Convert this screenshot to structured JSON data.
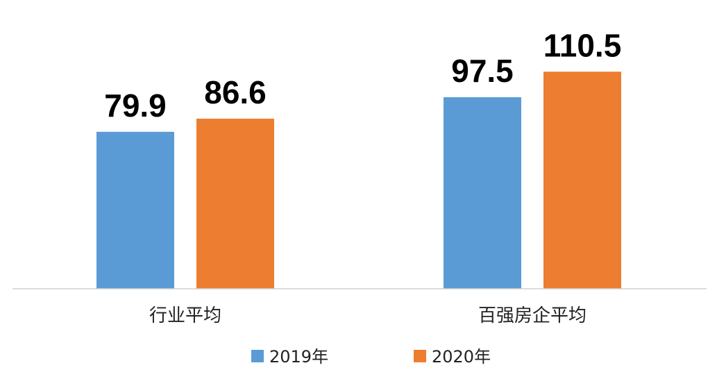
{
  "chart_data": {
    "type": "bar",
    "categories": [
      "行业平均",
      "百强房企平均"
    ],
    "series": [
      {
        "name": "2019年",
        "values": [
          79.9,
          97.5
        ],
        "color": "#5B9BD5"
      },
      {
        "name": "2020年",
        "values": [
          86.6,
          110.5
        ],
        "color": "#ED7D31"
      }
    ],
    "ylim": [
      0,
      115
    ],
    "grid": false,
    "legend_position": "bottom-center",
    "data_labels": true
  }
}
